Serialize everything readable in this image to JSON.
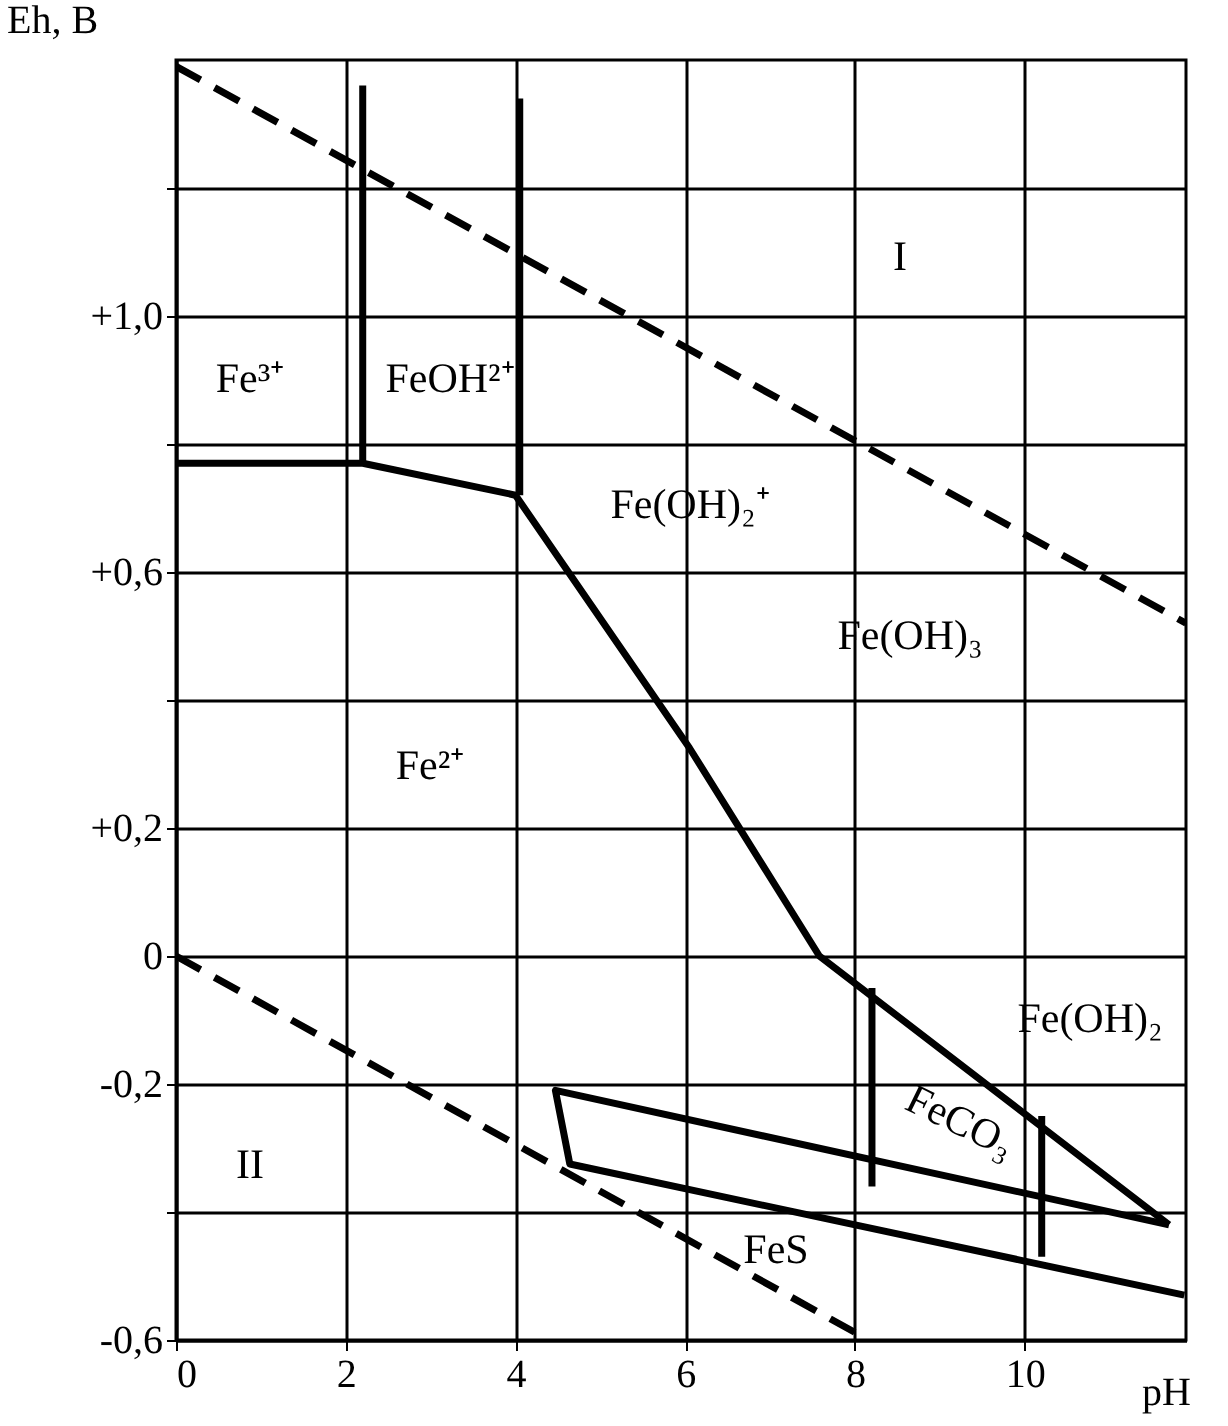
{
  "chart_data": {
    "type": "line",
    "xlabel": "pH",
    "ylabel": "Eh, В",
    "xlim": [
      0,
      11.9
    ],
    "ylim": [
      -0.6,
      1.4
    ],
    "xticks": [
      0,
      2,
      4,
      6,
      8,
      10
    ],
    "yticks": [
      {
        "value": -0.6,
        "label": "-0,6"
      },
      {
        "value": -0.4,
        "label": null
      },
      {
        "value": -0.2,
        "label": "-0,2"
      },
      {
        "value": 0,
        "label": "0"
      },
      {
        "value": 0.2,
        "label": "+0,2"
      },
      {
        "value": 0.4,
        "label": null
      },
      {
        "value": 0.6,
        "label": "+0,6"
      },
      {
        "value": 0.8,
        "label": null
      },
      {
        "value": 1.0,
        "label": "+1,0"
      },
      {
        "value": 1.2,
        "label": null
      }
    ],
    "grid": true,
    "marker": "none",
    "series": [
      {
        "color": "#000000",
        "line_style": "dashed",
        "x": [
          0,
          11.9
        ],
        "values": [
          1.39,
          0.52
        ]
      },
      {
        "color": "#000000",
        "line_style": "dashed",
        "x": [
          0,
          8.16
        ],
        "values": [
          0,
          -0.6
        ]
      },
      {
        "color": "#000000",
        "line_style": "solid",
        "x": [
          0,
          2.2,
          4.0,
          6.05,
          7.58,
          11.7
        ],
        "values": [
          0.77,
          0.77,
          0.72,
          0.325,
          0,
          -0.42
        ]
      },
      {
        "color": "#000000",
        "line_style": "solid",
        "x": [
          2.2,
          2.2
        ],
        "values": [
          0.77,
          1.36
        ]
      },
      {
        "color": "#000000",
        "line_style": "solid",
        "x": [
          4.05,
          4.05
        ],
        "values": [
          0.72,
          1.34
        ]
      },
      {
        "color": "#000000",
        "line_style": "solid",
        "x": [
          11.7,
          4.47,
          4.64,
          11.88
        ],
        "values": [
          -0.42,
          -0.21,
          -0.325,
          -0.53
        ]
      },
      {
        "color": "#000000",
        "line_style": "solid",
        "x": [
          8.2,
          8.2
        ],
        "values": [
          -0.05,
          -0.36
        ]
      },
      {
        "color": "#000000",
        "line_style": "solid",
        "x": [
          10.2,
          10.2
        ],
        "values": [
          -0.25,
          -0.47
        ]
      }
    ],
    "annotations": [
      "I",
      "Fe³⁺",
      "FeOH²⁺",
      "Fe(OH)₂⁺",
      "Fe(OH)₃",
      "Fe²⁺",
      "Fe(OH)₂",
      "FeCO₃",
      "FeS",
      "II"
    ]
  }
}
